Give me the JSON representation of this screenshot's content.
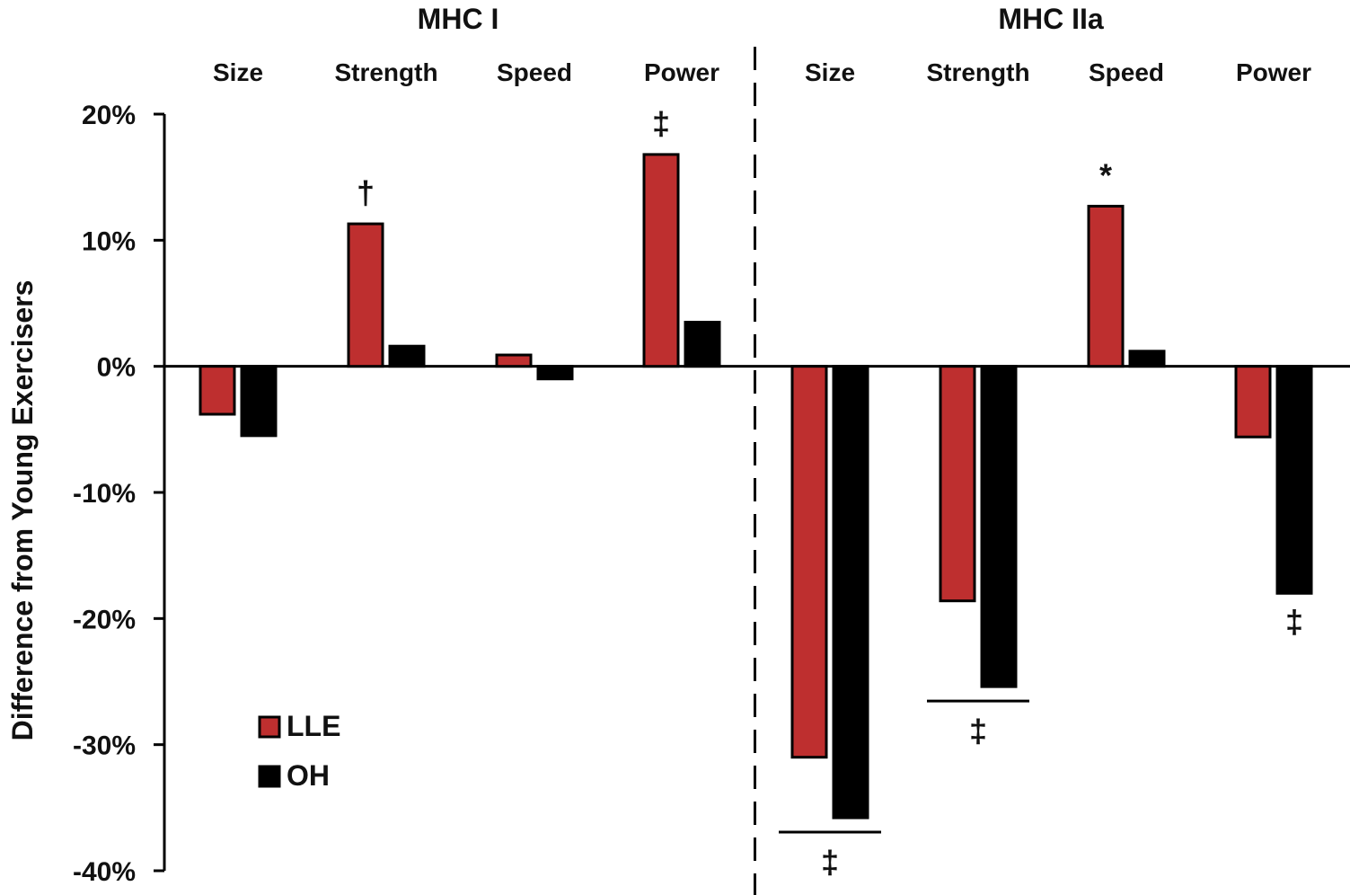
{
  "chart_data": {
    "type": "bar",
    "title": "",
    "ylabel": "Difference from Young Exercisers",
    "xlabel": "",
    "ylim": [
      -40,
      20
    ],
    "yticks": [
      {
        "value": 20,
        "label": "20%"
      },
      {
        "value": 10,
        "label": "10%"
      },
      {
        "value": 0,
        "label": "0%"
      },
      {
        "value": -10,
        "label": "-10%"
      },
      {
        "value": -20,
        "label": "-20%"
      },
      {
        "value": -30,
        "label": "-30%"
      },
      {
        "value": -40,
        "label": "-40%"
      }
    ],
    "groups": [
      {
        "name": "MHC I",
        "categories": [
          "Size",
          "Strength",
          "Speed",
          "Power"
        ]
      },
      {
        "name": "MHC IIa",
        "categories": [
          "Size",
          "Strength",
          "Speed",
          "Power"
        ]
      }
    ],
    "series": [
      {
        "name": "LLE",
        "color": "#BE2F2F",
        "values": [
          -3.8,
          11.3,
          0.9,
          16.8,
          -31.0,
          -18.6,
          12.7,
          -5.6
        ]
      },
      {
        "name": "OH",
        "color": "#000000",
        "values": [
          -5.5,
          1.6,
          -1.0,
          3.5,
          -35.8,
          -25.4,
          1.2,
          -18.0
        ]
      }
    ],
    "annotations": [
      {
        "text": "†",
        "category_index": 1,
        "series": "LLE",
        "position": "above"
      },
      {
        "text": "‡",
        "category_index": 3,
        "series": "LLE",
        "position": "above"
      },
      {
        "text": "*",
        "category_index": 6,
        "series": "LLE",
        "position": "above"
      },
      {
        "text": "‡",
        "category_index": 4,
        "series": "both",
        "position": "below",
        "bracket": true
      },
      {
        "text": "‡",
        "category_index": 5,
        "series": "both",
        "position": "below",
        "bracket": true
      },
      {
        "text": "‡",
        "category_index": 7,
        "series": "OH",
        "position": "below"
      }
    ],
    "divider": {
      "after_category_index": 3,
      "style": "dashed"
    },
    "legend": {
      "position": "bottom-left",
      "entries": [
        "LLE",
        "OH"
      ]
    },
    "grid": false
  }
}
